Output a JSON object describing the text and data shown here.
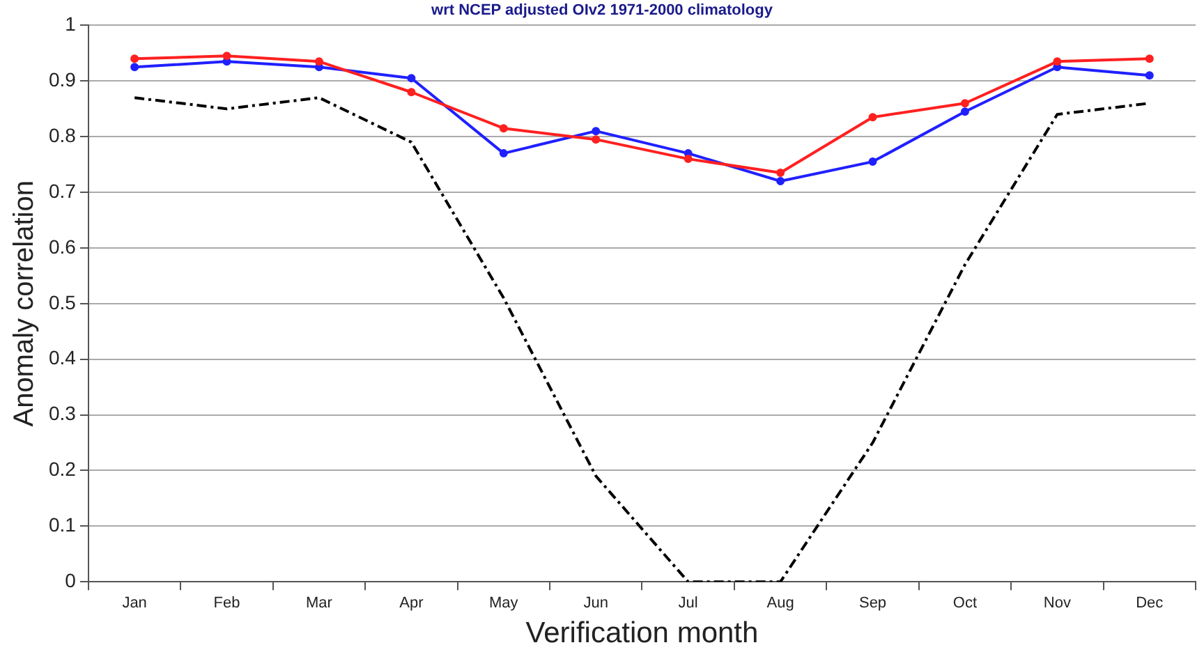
{
  "chart_data": {
    "type": "line",
    "title": "wrt NCEP adjusted OIv2 1971-2000 climatology",
    "xlabel": "Verification month",
    "ylabel": "Anomaly correlation",
    "categories": [
      "Jan",
      "Feb",
      "Mar",
      "Apr",
      "May",
      "Jun",
      "Jul",
      "Aug",
      "Sep",
      "Oct",
      "Nov",
      "Dec"
    ],
    "series": [
      {
        "color": "#ff2020",
        "marker": "circle",
        "line_style": "solid",
        "values": [
          0.94,
          0.945,
          0.935,
          0.88,
          0.815,
          0.795,
          0.76,
          0.735,
          0.835,
          0.86,
          0.935,
          0.94
        ]
      },
      {
        "color": "#2020ff",
        "marker": "circle",
        "line_style": "solid",
        "values": [
          0.925,
          0.935,
          0.925,
          0.905,
          0.77,
          0.81,
          0.77,
          0.72,
          0.755,
          0.845,
          0.925,
          0.91
        ]
      },
      {
        "color": "#000000",
        "marker": "none",
        "line_style": "dashed",
        "values": [
          0.87,
          0.85,
          0.87,
          0.79,
          0.51,
          0.19,
          0,
          0,
          0.25,
          0.57,
          0.84,
          0.86
        ]
      }
    ],
    "ylim": [
      0,
      1
    ],
    "yticks": [
      0,
      0.1,
      0.2,
      0.3,
      0.4,
      0.5,
      0.6,
      0.7,
      0.8,
      0.9,
      1
    ],
    "grid": "y",
    "legend": false
  }
}
